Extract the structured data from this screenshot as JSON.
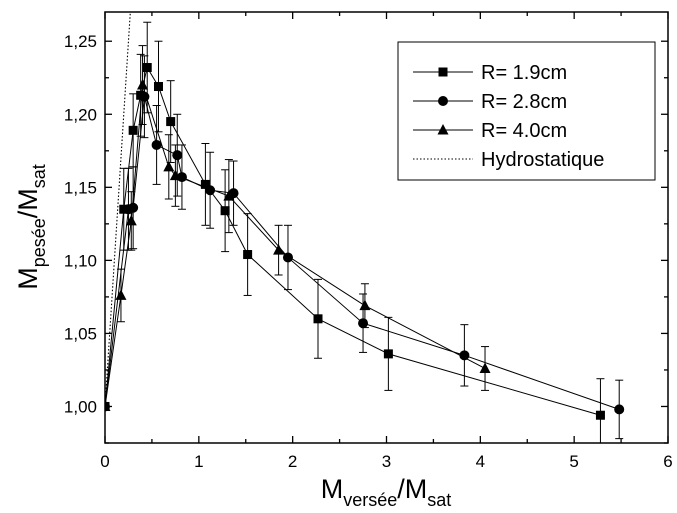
{
  "chart_data": {
    "type": "scatter",
    "xlabel": {
      "main": "M",
      "sub1": "versée",
      "mid": "/M",
      "sub2": "sat"
    },
    "ylabel": {
      "main": "M",
      "sub1": "pesée",
      "mid": "/M",
      "sub2": "sat"
    },
    "xlim": [
      0,
      6
    ],
    "ylim": [
      0.975,
      1.27
    ],
    "xticks": [
      0,
      1,
      2,
      3,
      4,
      5,
      6
    ],
    "xtick_labels": [
      "0",
      "1",
      "2",
      "3",
      "4",
      "5",
      "6"
    ],
    "yticks": [
      1.0,
      1.05,
      1.1,
      1.15,
      1.2,
      1.25
    ],
    "ytick_labels": [
      "1,00",
      "1,05",
      "1,10",
      "1,15",
      "1,20",
      "1,25"
    ],
    "legend_position": "top-right",
    "series": [
      {
        "name": "R= 1.9cm",
        "marker": "square",
        "x": [
          0,
          0.2,
          0.3,
          0.38,
          0.45,
          0.57,
          0.7,
          1.07,
          1.28,
          1.52,
          2.27,
          3.02,
          5.28
        ],
        "y": [
          1.0,
          1.135,
          1.189,
          1.213,
          1.232,
          1.219,
          1.195,
          1.152,
          1.134,
          1.104,
          1.06,
          1.036,
          0.994
        ],
        "err": [
          0,
          0.028,
          0.025,
          0.028,
          0.031,
          0.031,
          0.028,
          0.028,
          0.028,
          0.028,
          0.027,
          0.025,
          0.025
        ]
      },
      {
        "name": "R= 2.8cm",
        "marker": "circle",
        "x": [
          0,
          0.25,
          0.3,
          0.42,
          0.55,
          0.77,
          0.82,
          1.12,
          1.37,
          1.95,
          2.75,
          3.83,
          5.48
        ],
        "y": [
          1.0,
          1.135,
          1.136,
          1.212,
          1.179,
          1.172,
          1.157,
          1.148,
          1.146,
          1.102,
          1.057,
          1.035,
          0.998
        ],
        "err": [
          0,
          0.028,
          0.028,
          0.028,
          0.027,
          0.028,
          0.022,
          0.026,
          0.022,
          0.022,
          0.02,
          0.021,
          0.02
        ]
      },
      {
        "name": "R= 4.0cm",
        "marker": "triangle",
        "x": [
          0,
          0.17,
          0.28,
          0.4,
          0.68,
          0.75,
          1.32,
          1.85,
          2.77,
          4.05
        ],
        "y": [
          1.0,
          1.076,
          1.127,
          1.22,
          1.164,
          1.158,
          1.144,
          1.107,
          1.069,
          1.026
        ],
        "err": [
          0,
          0.018,
          0.02,
          0.027,
          0.022,
          0.021,
          0.025,
          0.017,
          0.015,
          0.015
        ]
      },
      {
        "name": "Hydrostatique",
        "marker": "none",
        "line": "dotted",
        "x": [
          0,
          0.285
        ],
        "y": [
          1.0,
          1.285
        ]
      }
    ]
  }
}
